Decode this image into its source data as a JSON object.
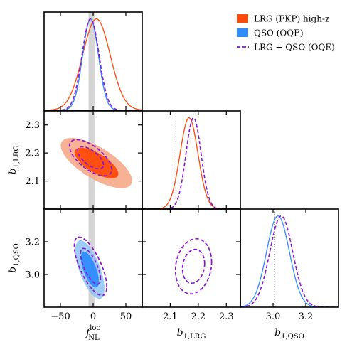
{
  "chart_data": {
    "type": "corner",
    "colors": {
      "lrg": "#ff4a0a",
      "lrg_light": "#f6a383",
      "qso": "#2f8cff",
      "qso_light": "#8cc4f6",
      "combined": "#8b14d6",
      "band": "#d6d6d6",
      "fiducial_line": "#808080"
    },
    "legend": [
      {
        "key": "lrg",
        "label": "LRG (FKP) high-z",
        "style": "filled"
      },
      {
        "key": "qso",
        "label": "QSO (OQE)",
        "style": "filled"
      },
      {
        "key": "combined",
        "label": "LRG + QSO (OQE)",
        "style": "dashed"
      }
    ],
    "parameters": [
      {
        "key": "fnl",
        "label": "f",
        "label_sub": "NL",
        "label_sup": "loc",
        "range": [
          -75,
          75
        ],
        "ticks": [
          -50,
          0,
          50
        ],
        "tick_labels": [
          "−50",
          "0",
          "50"
        ]
      },
      {
        "key": "b_lrg",
        "label": "b",
        "label_sub": "1,LRG",
        "range": [
          2.0,
          2.35
        ],
        "ticks": [
          2.1,
          2.2,
          2.3
        ],
        "tick_labels": [
          "2.1",
          "2.2",
          "2.3"
        ]
      },
      {
        "key": "b_qso",
        "label": "b",
        "label_sub": "1,QSO",
        "range": [
          2.8,
          3.4
        ],
        "ticks": [
          3.0,
          3.2
        ],
        "tick_labels": [
          "3.0",
          "3.2"
        ]
      }
    ],
    "fnl_band": [
      -7,
      3
    ],
    "fiducial_lines": {
      "b_lrg": 2.12,
      "b_qso": 3.01
    },
    "marginals": {
      "fnl": [
        {
          "dataset": "lrg",
          "mean": 5,
          "sigma": 21
        },
        {
          "dataset": "qso",
          "mean": -4,
          "sigma": 12
        },
        {
          "dataset": "combined",
          "mean": -4,
          "sigma": 13
        }
      ],
      "b_lrg": [
        {
          "dataset": "lrg",
          "mean": 2.167,
          "sigma": 0.032
        },
        {
          "dataset": "combined",
          "mean": 2.183,
          "sigma": 0.027
        }
      ],
      "b_qso": [
        {
          "dataset": "qso",
          "mean": 3.03,
          "sigma": 0.07
        },
        {
          "dataset": "combined",
          "mean": 3.05,
          "sigma": 0.07
        }
      ]
    },
    "contours": [
      {
        "panel": "b_lrg_vs_fnl",
        "dataset": "lrg",
        "mean": [
          5,
          2.164
        ],
        "sigma": [
          22,
          0.036
        ],
        "rho": -0.7
      },
      {
        "panel": "b_lrg_vs_fnl",
        "dataset": "combined",
        "mean": [
          -4,
          2.183
        ],
        "sigma": [
          13,
          0.026
        ],
        "rho": -0.65
      },
      {
        "panel": "b_qso_vs_fnl",
        "dataset": "qso",
        "mean": [
          -5,
          3.03
        ],
        "sigma": [
          9,
          0.072
        ],
        "rho": -0.65
      },
      {
        "panel": "b_qso_vs_fnl",
        "dataset": "combined",
        "mean": [
          -4,
          3.05
        ],
        "sigma": [
          10,
          0.072
        ],
        "rho": -0.7
      },
      {
        "panel": "b_qso_vs_b_lrg",
        "dataset": "combined",
        "mean": [
          2.183,
          3.05
        ],
        "sigma": [
          0.026,
          0.068
        ],
        "rho": 0.15
      }
    ]
  }
}
